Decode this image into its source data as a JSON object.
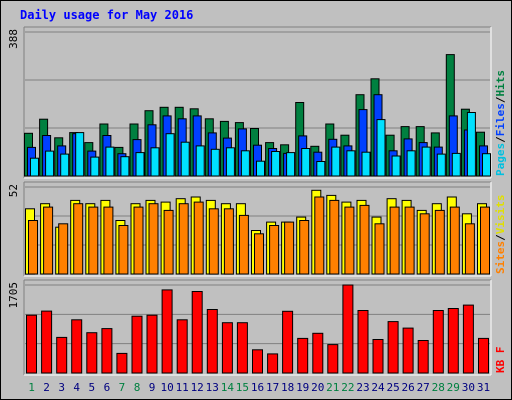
{
  "chart_data": {
    "type": "bar",
    "title": "Daily usage for May 2016",
    "categories": [
      "1",
      "2",
      "3",
      "4",
      "5",
      "6",
      "7",
      "8",
      "9",
      "10",
      "11",
      "12",
      "13",
      "14",
      "15",
      "16",
      "17",
      "18",
      "19",
      "20",
      "21",
      "22",
      "23",
      "24",
      "25",
      "26",
      "27",
      "28",
      "29",
      "30",
      "31"
    ],
    "weekend_days": [
      "1",
      "7",
      "8",
      "14",
      "15",
      "21",
      "22",
      "28",
      "29"
    ],
    "panels": [
      {
        "id": "hits-files-pages",
        "ymax_label": "388",
        "ylim": [
          0,
          388
        ],
        "side_label": [
          "Pages",
          "Files",
          "Hits"
        ],
        "series": [
          {
            "name": "Hits",
            "color": "#008040",
            "values": [
              115,
              153,
              103,
              117,
              90,
              140,
              77,
              140,
              176,
              185,
              185,
              181,
              154,
              147,
              144,
              128,
              90,
              84,
              198,
              80,
              140,
              110,
              219,
              262,
              110,
              133,
              133,
              116,
              327,
              180,
              118
            ]
          },
          {
            "name": "Files",
            "color": "#0040ff",
            "values": [
              77,
              109,
              81,
              114,
              67,
              109,
              60,
              98,
              138,
              162,
              154,
              162,
              116,
              102,
              127,
              83,
              74,
              61,
              108,
              64,
              99,
              81,
              179,
              219,
              68,
              100,
              90,
              78,
              162,
              124,
              81
            ]
          },
          {
            "name": "Pages",
            "color": "#00e0ff",
            "values": [
              48,
              67,
              59,
              117,
              51,
              78,
              52,
              63,
              76,
              114,
              91,
              81,
              72,
              76,
              68,
              40,
              66,
              63,
              74,
              39,
              78,
              68,
              64,
              152,
              54,
              68,
              78,
              59,
              61,
              171,
              60
            ]
          }
        ]
      },
      {
        "id": "visits-sites",
        "ymax_label": "52",
        "ylim": [
          0,
          52
        ],
        "side_label": [
          "Sites",
          "Visits"
        ],
        "series": [
          {
            "name": "Visits",
            "color": "#ffff00",
            "values": [
              39,
              42,
              28,
              44,
              42,
              44,
              32,
              42,
              44,
              43,
              45,
              46,
              44,
              42,
              42,
              26,
              31,
              31,
              34,
              50,
              47,
              43,
              44,
              34,
              45,
              44,
              38,
              42,
              46,
              36,
              42
            ]
          },
          {
            "name": "Sites",
            "color": "#ff8000",
            "values": [
              32,
              40,
              30,
              42,
              40,
              40,
              29,
              40,
              42,
              38,
              42,
              43,
              39,
              39,
              35,
              24,
              29,
              31,
              32,
              46,
              44,
              40,
              41,
              30,
              40,
              40,
              36,
              38,
              40,
              30,
              40
            ]
          }
        ]
      },
      {
        "id": "kbytes",
        "ymax_label": "1705",
        "ylim": [
          0,
          1705
        ],
        "side_label": [
          "KB",
          "F"
        ],
        "series": [
          {
            "name": "KB F",
            "color": "#ff0000",
            "values": [
              1120,
              1200,
              690,
              1030,
              780,
              860,
              380,
              1100,
              1120,
              1610,
              1030,
              1580,
              1230,
              975,
              975,
              450,
              370,
              1195,
              670,
              770,
              550,
              1705,
              1210,
              650,
              995,
              870,
              630,
              1210,
              1250,
              1315,
              670
            ]
          }
        ]
      }
    ]
  },
  "colors": {
    "background": "#c0c0c0",
    "title": "#0000ff",
    "weekday_label": "#000080",
    "weekend_label": "#008040",
    "grid": "#808080",
    "bevel_light": "#ffffff",
    "bevel_dark": "#808080",
    "side_hits": "#008040",
    "side_files": "#0040ff",
    "side_pages": "#00c0e0",
    "side_visits": "#e0e000",
    "side_sites": "#ff8000",
    "side_kbytes": "#ff0000"
  }
}
